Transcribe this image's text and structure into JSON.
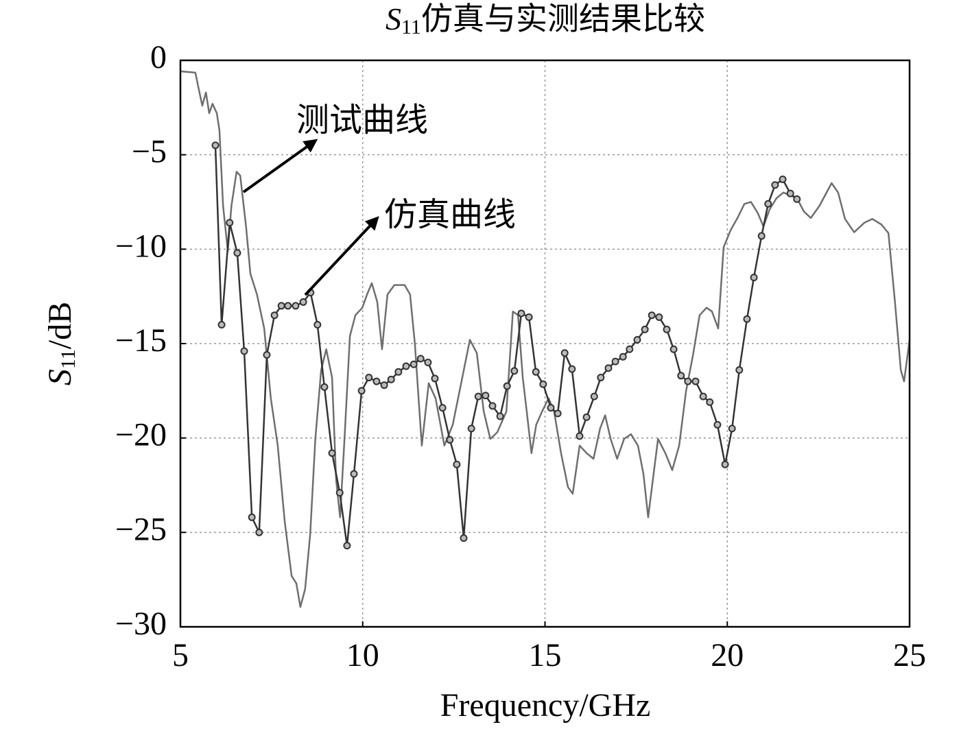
{
  "chart_data": {
    "type": "line",
    "title_parts": [
      "S",
      "11",
      "仿真与实测结果比较"
    ],
    "xlabel": "Frequency/GHz",
    "ylabel_parts": [
      "S",
      "11",
      "/dB"
    ],
    "xlim": [
      5,
      25
    ],
    "ylim": [
      -30,
      0
    ],
    "xticks": [
      5,
      10,
      15,
      20,
      25
    ],
    "yticks": [
      0,
      {
        "value": -5,
        "label": "−5"
      },
      {
        "value": -10,
        "label": "−10"
      },
      {
        "value": -15,
        "label": "−15"
      },
      {
        "value": -20,
        "label": "−20"
      },
      {
        "value": -25,
        "label": "−25"
      },
      {
        "value": -30,
        "label": "−30"
      }
    ],
    "grid": true,
    "series": [
      {
        "name": "测试曲线",
        "color": "#6e6e6e",
        "marker": false,
        "x": [
          5.0,
          5.41,
          5.5,
          5.6,
          5.7,
          5.79,
          5.88,
          6.0,
          6.07,
          6.17,
          6.3,
          6.4,
          6.54,
          6.64,
          6.8,
          6.92,
          7.1,
          7.3,
          7.48,
          7.67,
          7.86,
          8.05,
          8.18,
          8.29,
          8.42,
          8.56,
          8.7,
          8.86,
          9.0,
          9.16,
          9.27,
          9.38,
          9.5,
          9.65,
          9.8,
          9.99,
          10.12,
          10.25,
          10.4,
          10.53,
          10.68,
          10.87,
          11.15,
          11.3,
          11.43,
          11.62,
          11.81,
          12.0,
          12.24,
          12.47,
          12.7,
          12.94,
          13.13,
          13.32,
          13.5,
          13.69,
          13.94,
          14.12,
          14.26,
          14.39,
          14.5,
          14.63,
          14.76,
          14.92,
          15.1,
          15.25,
          15.44,
          15.63,
          15.76,
          15.95,
          16.14,
          16.33,
          16.51,
          16.65,
          16.8,
          16.98,
          17.17,
          17.36,
          17.55,
          17.7,
          17.83,
          17.96,
          18.1,
          18.3,
          18.49,
          18.68,
          18.87,
          19.05,
          19.24,
          19.43,
          19.58,
          19.75,
          19.9,
          20.09,
          20.28,
          20.47,
          20.65,
          20.84,
          20.99,
          21.16,
          21.35,
          21.54,
          21.72,
          21.91,
          22.1,
          22.29,
          22.53,
          22.86,
          23.04,
          23.23,
          23.48,
          23.76,
          23.98,
          24.23,
          24.42,
          24.6,
          24.76,
          24.85,
          25.0
        ],
        "values": [
          -0.58,
          -0.65,
          -1.5,
          -2.4,
          -1.7,
          -2.8,
          -2.3,
          -2.8,
          -3.7,
          -7.7,
          -10.1,
          -7.7,
          -5.9,
          -6.1,
          -8.8,
          -11.3,
          -12.4,
          -14.2,
          -17.9,
          -20.4,
          -24.4,
          -27.3,
          -27.7,
          -28.95,
          -28.0,
          -25.1,
          -20.05,
          -16.4,
          -15.3,
          -16.8,
          -22.2,
          -24.2,
          -20.05,
          -14.6,
          -13.5,
          -13.1,
          -12.4,
          -11.8,
          -12.8,
          -15.3,
          -12.4,
          -11.9,
          -11.9,
          -12.4,
          -15.0,
          -20.4,
          -17.1,
          -17.9,
          -20.4,
          -19.3,
          -17.1,
          -14.8,
          -15.5,
          -18.6,
          -20.05,
          -19.7,
          -18.6,
          -13.3,
          -13.5,
          -16.8,
          -18.6,
          -20.8,
          -19.3,
          -18.6,
          -17.9,
          -18.6,
          -20.8,
          -22.6,
          -22.95,
          -20.4,
          -20.8,
          -21.1,
          -19.5,
          -18.8,
          -20.05,
          -21.1,
          -20.05,
          -19.8,
          -20.4,
          -21.9,
          -24.2,
          -22.2,
          -20.05,
          -20.8,
          -21.7,
          -20.4,
          -17.5,
          -15.7,
          -13.5,
          -13.1,
          -13.3,
          -14.2,
          -9.9,
          -9.0,
          -8.35,
          -7.6,
          -7.5,
          -8.1,
          -8.8,
          -7.9,
          -7.3,
          -7.0,
          -7.15,
          -7.3,
          -8.0,
          -8.35,
          -7.7,
          -6.5,
          -7.0,
          -8.4,
          -9.1,
          -8.6,
          -8.4,
          -8.7,
          -9.15,
          -12.8,
          -16.4,
          -17.0,
          -14.8
        ]
      },
      {
        "name": "仿真曲线",
        "color": "#333333",
        "marker": true,
        "x": [
          5.96,
          6.13,
          6.35,
          6.56,
          6.75,
          6.96,
          7.16,
          7.37,
          7.58,
          7.77,
          7.95,
          8.16,
          8.37,
          8.57,
          8.76,
          8.95,
          9.16,
          9.37,
          9.57,
          9.76,
          9.97,
          10.17,
          10.38,
          10.59,
          10.78,
          10.98,
          11.19,
          11.4,
          11.59,
          11.79,
          11.98,
          12.19,
          12.39,
          12.58,
          12.77,
          12.98,
          13.17,
          13.37,
          13.56,
          13.77,
          13.96,
          14.16,
          14.35,
          14.56,
          14.75,
          14.95,
          15.16,
          15.35,
          15.54,
          15.74,
          15.95,
          16.14,
          16.35,
          16.53,
          16.74,
          16.93,
          17.14,
          17.32,
          17.53,
          17.74,
          17.93,
          18.13,
          18.34,
          18.53,
          18.73,
          18.92,
          19.13,
          19.34,
          19.52,
          19.73,
          19.94,
          20.13,
          20.33,
          20.54,
          20.73,
          20.94,
          21.12,
          21.31,
          21.52,
          21.73,
          21.91
        ],
        "values": [
          -4.5,
          -14.0,
          -8.6,
          -10.2,
          -15.4,
          -24.2,
          -25.0,
          -15.6,
          -13.5,
          -13.0,
          -13.0,
          -13.0,
          -12.8,
          -12.3,
          -14.0,
          -17.3,
          -20.8,
          -22.9,
          -25.7,
          -21.9,
          -17.5,
          -16.8,
          -17.0,
          -17.2,
          -16.9,
          -16.5,
          -16.2,
          -16.1,
          -15.8,
          -16.0,
          -16.85,
          -18.4,
          -20.1,
          -21.4,
          -25.3,
          -19.5,
          -17.8,
          -17.75,
          -18.3,
          -18.85,
          -17.25,
          -16.45,
          -13.4,
          -13.6,
          -16.5,
          -17.15,
          -18.4,
          -18.7,
          -15.5,
          -16.35,
          -19.9,
          -18.9,
          -17.8,
          -16.8,
          -16.3,
          -15.95,
          -15.7,
          -15.3,
          -14.8,
          -14.25,
          -13.5,
          -13.6,
          -14.25,
          -15.3,
          -16.7,
          -17.0,
          -17.0,
          -17.8,
          -18.1,
          -19.3,
          -21.4,
          -19.5,
          -16.4,
          -13.7,
          -11.5,
          -9.3,
          -7.6,
          -6.6,
          -6.3,
          -7.05,
          -7.35
        ]
      }
    ]
  }
}
